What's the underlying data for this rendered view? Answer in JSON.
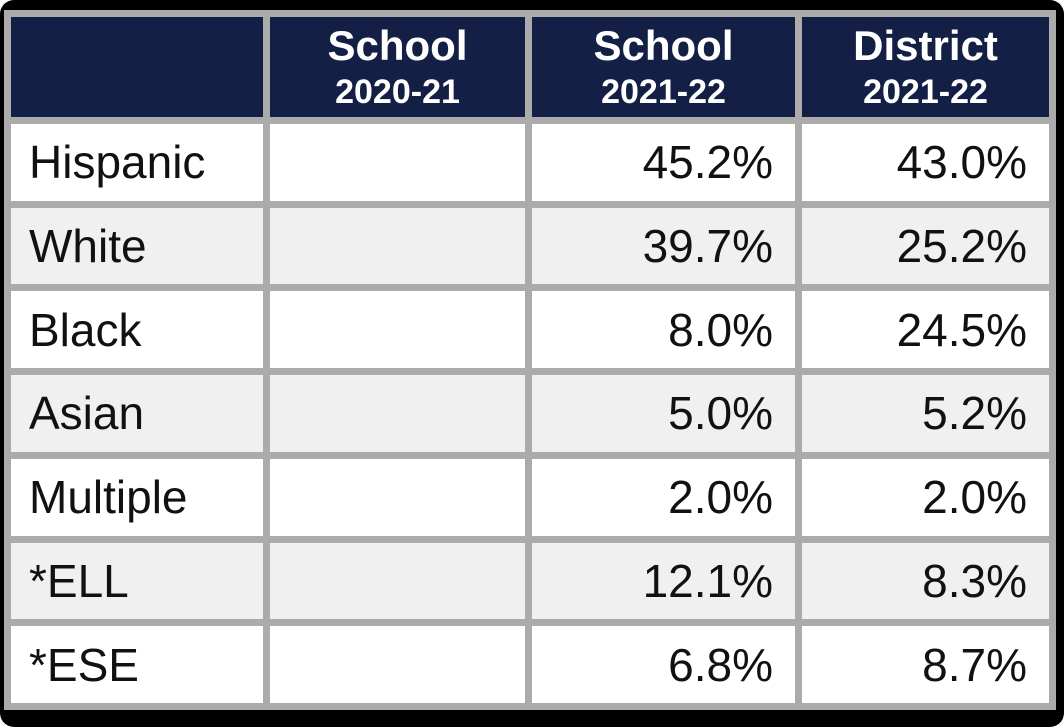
{
  "colors": {
    "header_bg": "#131F45",
    "header_text": "#FFFFFF",
    "grid_gray": "#ABABAB",
    "row_white": "#FFFFFF",
    "row_alt_gray": "#F0F0F0",
    "body_text": "#111111",
    "canvas_bg": "#000000"
  },
  "chart_data": {
    "type": "table",
    "columns": [
      {
        "line1": "",
        "line2": ""
      },
      {
        "line1": "School",
        "line2": "2020-21"
      },
      {
        "line1": "School",
        "line2": "2021-22"
      },
      {
        "line1": "District",
        "line2": "2021-22"
      }
    ],
    "rows": [
      {
        "label": "Hispanic",
        "school_2020_21": "",
        "school_2021_22": "45.2%",
        "district_2021_22": "43.0%"
      },
      {
        "label": "White",
        "school_2020_21": "",
        "school_2021_22": "39.7%",
        "district_2021_22": "25.2%"
      },
      {
        "label": "Black",
        "school_2020_21": "",
        "school_2021_22": "8.0%",
        "district_2021_22": "24.5%"
      },
      {
        "label": "Asian",
        "school_2020_21": "",
        "school_2021_22": "5.0%",
        "district_2021_22": "5.2%"
      },
      {
        "label": "Multiple",
        "school_2020_21": "",
        "school_2021_22": "2.0%",
        "district_2021_22": "2.0%"
      },
      {
        "label": "*ELL",
        "school_2020_21": "",
        "school_2021_22": "12.1%",
        "district_2021_22": "8.3%"
      },
      {
        "label": "*ESE",
        "school_2020_21": "",
        "school_2021_22": "6.8%",
        "district_2021_22": "8.7%"
      }
    ]
  }
}
